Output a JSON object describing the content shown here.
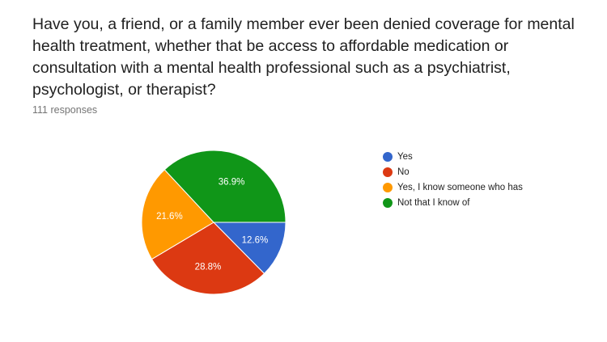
{
  "question": "Have you, a friend, or a family member ever been denied coverage for mental health treatment, whether that be access to affordable medication or consultation with a mental health professional such as a psychiatrist, psychologist, or therapist?",
  "responses": "111 responses",
  "chart_data": {
    "type": "pie",
    "legend_position": "right",
    "start_angle": "3 o'clock, clockwise",
    "slices": [
      {
        "label": "Yes",
        "value": 12.6,
        "display": "12.6%",
        "color": "#3366cc"
      },
      {
        "label": "No",
        "value": 28.8,
        "display": "28.8%",
        "color": "#dc3912"
      },
      {
        "label": "Yes, I know someone who has",
        "value": 21.6,
        "display": "21.6%",
        "color": "#ff9900"
      },
      {
        "label": "Not that I know of",
        "value": 36.9,
        "display": "36.9%",
        "color": "#109618"
      }
    ]
  }
}
